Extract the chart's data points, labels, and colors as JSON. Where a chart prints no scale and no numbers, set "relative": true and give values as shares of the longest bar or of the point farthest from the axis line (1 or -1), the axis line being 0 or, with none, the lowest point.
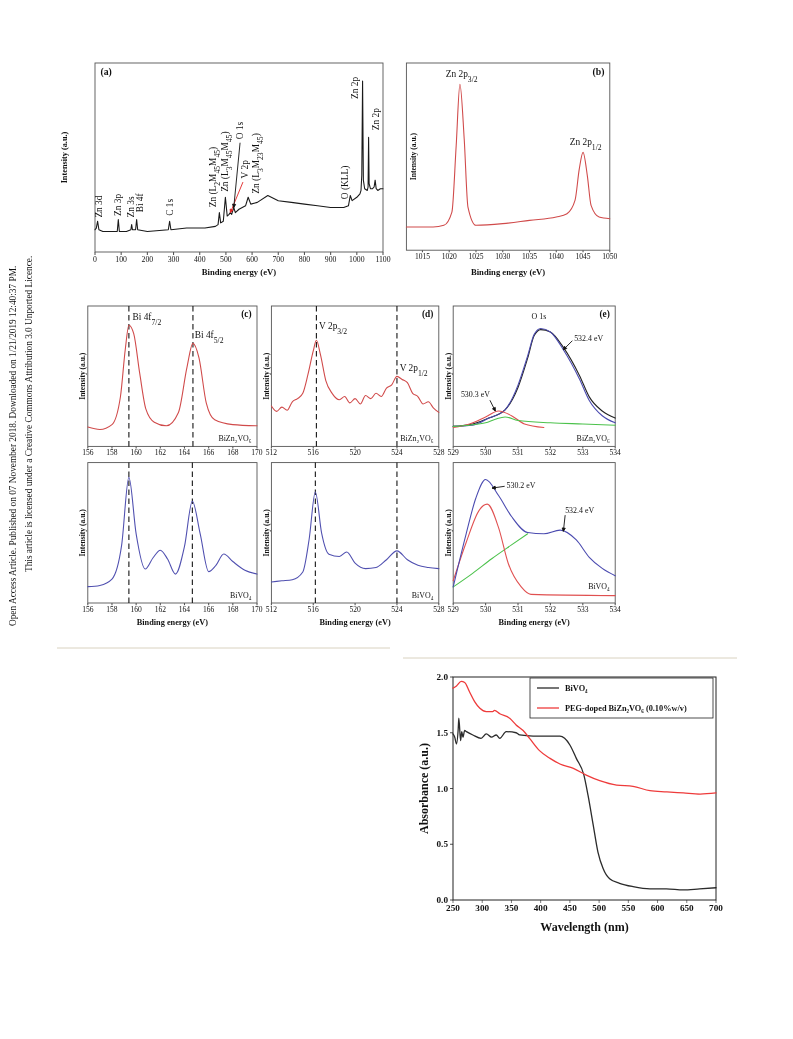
{
  "chart_data": [
    {
      "type": "line",
      "title": "(a)",
      "xlabel": "Binding energy (eV)",
      "ylabel": "Intensity (a.u.)",
      "relative": true,
      "xlim": [
        0,
        1100
      ],
      "xticks": [
        0,
        100,
        200,
        300,
        400,
        500,
        600,
        700,
        800,
        900,
        1000,
        1100
      ],
      "series": [
        {
          "color": "#1a1a1a",
          "x": [
            0,
            5,
            10,
            15,
            30,
            60,
            85,
            89,
            93,
            120,
            137,
            140,
            143,
            155,
            159,
            163,
            200,
            280,
            285,
            290,
            350,
            420,
            460,
            470,
            475,
            480,
            490,
            498,
            505,
            512,
            517,
            522,
            530,
            536,
            550,
            575,
            585,
            595,
            620,
            660,
            700,
            750,
            800,
            850,
            900,
            950,
            968,
            975,
            982,
            1000,
            1012,
            1016,
            1019,
            1022,
            1025,
            1030,
            1040,
            1043,
            1045,
            1047,
            1052,
            1060,
            1066,
            1070,
            1074,
            1080,
            1090,
            1100
          ],
          "values": [
            0.13,
            0.14,
            0.18,
            0.13,
            0.12,
            0.12,
            0.12,
            0.19,
            0.12,
            0.12,
            0.13,
            0.16,
            0.13,
            0.13,
            0.19,
            0.13,
            0.12,
            0.13,
            0.18,
            0.13,
            0.14,
            0.14,
            0.15,
            0.16,
            0.23,
            0.17,
            0.18,
            0.32,
            0.21,
            0.22,
            0.23,
            0.22,
            0.26,
            0.23,
            0.25,
            0.27,
            0.32,
            0.28,
            0.29,
            0.33,
            0.3,
            0.29,
            0.28,
            0.27,
            0.26,
            0.26,
            0.27,
            0.33,
            0.3,
            0.32,
            0.34,
            0.36,
            0.45,
            1.0,
            0.42,
            0.37,
            0.36,
            0.38,
            0.67,
            0.4,
            0.37,
            0.37,
            0.38,
            0.42,
            0.37,
            0.36,
            0.37,
            0.37
          ]
        }
      ],
      "annotations": [
        {
          "text": "Zn 3d",
          "x": 10,
          "y": 0.18
        },
        {
          "text": "Zn 3p",
          "x": 89,
          "y": 0.19
        },
        {
          "text": "Zn 3s",
          "x": 140,
          "y": 0.16
        },
        {
          "text": "Bi 4f",
          "x": 159,
          "y": 0.19
        },
        {
          "text": "C 1s",
          "x": 285,
          "y": 0.18
        },
        {
          "text": "Zn (L$_{2}$M$_{45}$M$_{45}$)",
          "x": 475,
          "y": 0.23
        },
        {
          "text": "Zn (L$_{3}$M$_{45}$M$_{45}$)",
          "x": 498,
          "y": 0.32
        },
        {
          "text": "V 2p",
          "x": 517,
          "y": 0.23
        },
        {
          "text": "O 1s",
          "x": 530,
          "y": 0.26
        },
        {
          "text": "Zn (L$_{3}$M$_{23}$M$_{45}$)",
          "x": 585,
          "y": 0.32
        },
        {
          "text": "O (KLL)",
          "x": 975,
          "y": 0.33
        },
        {
          "text": "Zn 2p",
          "x": 1022,
          "y": 1.0
        },
        {
          "text": "Zn 2p",
          "x": 1045,
          "y": 0.67
        },
        "Open Access Article. Published on 07 November 2018. Downloaded on 1/21/2019 12:40:37 PM.",
        "This article is licensed under a Creative Commons Attribution 3.0 Unported Licence."
      ]
    },
    {
      "type": "line",
      "title": "(b)",
      "xlabel": "Binding energy (eV)",
      "ylabel": "Intensity (a.u.)",
      "relative": true,
      "xlim": [
        1012,
        1050
      ],
      "xticks": [
        1015,
        1020,
        1025,
        1030,
        1035,
        1040,
        1045,
        1050
      ],
      "series": [
        {
          "color": "#d04a4a",
          "x": [
            1012,
            1015,
            1017,
            1019,
            1020.5,
            1021.3,
            1022,
            1022.8,
            1023.5,
            1025,
            1030,
            1035,
            1040,
            1042,
            1043.5,
            1044.3,
            1045,
            1045.8,
            1046.5,
            1048,
            1050
          ],
          "values": [
            0.14,
            0.14,
            0.14,
            0.15,
            0.23,
            0.63,
            1.0,
            0.67,
            0.26,
            0.15,
            0.16,
            0.18,
            0.2,
            0.22,
            0.3,
            0.49,
            0.59,
            0.45,
            0.27,
            0.2,
            0.19
          ]
        }
      ],
      "annotations": [
        {
          "text": "Zn 2p$_{3/2}$",
          "x": 1022,
          "y": 1.0
        },
        {
          "text": "Zn 2p$_{1/2}$",
          "x": 1045,
          "y": 0.59
        }
      ]
    },
    {
      "type": "line",
      "title": "(c)",
      "ylabel": "Intensity (a.u.)",
      "relative": true,
      "xlim": [
        156,
        170
      ],
      "xticks": [
        156,
        158,
        160,
        162,
        164,
        166,
        168,
        170
      ],
      "series": [
        {
          "color": "#d04a4a",
          "x": [
            156,
            157,
            158,
            158.7,
            159.1,
            159.4,
            159.8,
            160.3,
            160.8,
            161.5,
            162.5,
            163.5,
            164.2,
            164.7,
            165.2,
            165.8,
            166.5,
            168,
            170
          ],
          "values": [
            0.16,
            0.14,
            0.18,
            0.41,
            0.8,
            1.0,
            0.93,
            0.6,
            0.31,
            0.2,
            0.17,
            0.28,
            0.65,
            0.85,
            0.73,
            0.36,
            0.22,
            0.18,
            0.17
          ]
        }
      ],
      "ref_lines": [
        {
          "axis": "x",
          "value": 159.4,
          "color": "#111111",
          "line_style": "dashed"
        },
        {
          "axis": "x",
          "value": 164.7,
          "color": "#111111",
          "line_style": "dashed"
        }
      ],
      "annotations": [
        {
          "text": "Bi 4f$_{7/2}$",
          "x": 159.4,
          "y": 1.0
        },
        {
          "text": "Bi 4f$_{5/2}$",
          "x": 164.7,
          "y": 0.85
        },
        "BiZn₂VO₆"
      ]
    },
    {
      "type": "line",
      "title": "(d)",
      "ylabel": "Intensity (a.u.)",
      "relative": true,
      "xlim": [
        512,
        528
      ],
      "xticks": [
        512,
        516,
        520,
        524,
        528
      ],
      "series": [
        {
          "color": "#d04a4a",
          "x": [
            512,
            512.5,
            513,
            513.5,
            514,
            514.5,
            515,
            515.5,
            516,
            516.3,
            516.7,
            517.2,
            517.8,
            518.5,
            519,
            519.5,
            520,
            520.5,
            521,
            521.5,
            522,
            522.5,
            523,
            523.5,
            524,
            524.5,
            525,
            525.5,
            526,
            526.5,
            527,
            527.5,
            528
          ],
          "values": [
            0.38,
            0.33,
            0.37,
            0.34,
            0.42,
            0.45,
            0.5,
            0.68,
            0.9,
            1.0,
            0.86,
            0.62,
            0.5,
            0.44,
            0.47,
            0.41,
            0.45,
            0.4,
            0.48,
            0.45,
            0.5,
            0.47,
            0.55,
            0.58,
            0.66,
            0.63,
            0.6,
            0.5,
            0.47,
            0.4,
            0.42,
            0.36,
            0.32
          ]
        }
      ],
      "ref_lines": [
        {
          "axis": "x",
          "value": 516.3,
          "color": "#111111",
          "line_style": "dashed"
        },
        {
          "axis": "x",
          "value": 524,
          "color": "#111111",
          "line_style": "dashed"
        }
      ],
      "annotations": [
        {
          "text": "V 2p$_{3/2}$",
          "x": 516.3,
          "y": 1.0
        },
        {
          "text": "V 2p$_{1/2}$",
          "x": 524,
          "y": 0.66
        },
        "BiZn₂VO₆"
      ]
    },
    {
      "type": "line",
      "title": "(e)",
      "ylabel": "Intensity (a.u.)",
      "relative": true,
      "xlim": [
        529,
        534
      ],
      "xticks": [
        529,
        530,
        531,
        532,
        533,
        534
      ],
      "series": [
        {
          "color": "#222222",
          "x": [
            529,
            529.6,
            530.1,
            530.6,
            531,
            531.3,
            531.5,
            531.7,
            532,
            532.4,
            532.9,
            533.2,
            533.6,
            534
          ],
          "values": [
            0.17,
            0.19,
            0.24,
            0.31,
            0.5,
            0.75,
            0.94,
            0.99,
            0.97,
            0.84,
            0.6,
            0.42,
            0.3,
            0.24
          ]
        },
        {
          "color": "#4b4bb0",
          "x": [
            529,
            529.6,
            530.1,
            530.6,
            531,
            531.3,
            531.5,
            531.7,
            532,
            532.4,
            532.9,
            533.2,
            533.6,
            534
          ],
          "values": [
            0.17,
            0.18,
            0.24,
            0.31,
            0.52,
            0.77,
            0.95,
            1.0,
            0.97,
            0.82,
            0.57,
            0.39,
            0.26,
            0.2
          ]
        },
        {
          "color": "#e05050",
          "x": [
            529,
            529.5,
            530,
            530.4,
            530.8,
            531.2,
            531.8
          ],
          "values": [
            0.16,
            0.19,
            0.25,
            0.3,
            0.26,
            0.19,
            0.16
          ]
        },
        {
          "color": "#4cc24c",
          "x": [
            529,
            529.5,
            530,
            530.3,
            530.6,
            531,
            532,
            533,
            534
          ],
          "values": [
            0.17,
            0.18,
            0.2,
            0.23,
            0.25,
            0.22,
            0.2,
            0.19,
            0.18
          ]
        }
      ],
      "annotations": [
        {
          "text": "O 1s",
          "x": 531.7,
          "y": 1.0
        },
        {
          "text": "532.4 eV",
          "x": 532.4,
          "y": 0.82
        },
        {
          "text": "530.3 eV",
          "x": 530.3,
          "y": 0.3
        },
        "BiZn₂VO₆"
      ]
    },
    {
      "type": "line",
      "xlabel": "Binding energy (eV)",
      "ylabel": "Intensity (a.u.)",
      "relative": true,
      "xlim": [
        156,
        170
      ],
      "xticks": [
        156,
        158,
        160,
        162,
        164,
        166,
        168,
        170
      ],
      "series": [
        {
          "color": "#5050b0",
          "x": [
            156,
            157,
            158,
            158.8,
            159.4,
            160,
            160.75,
            161.4,
            162,
            162.6,
            163.25,
            164,
            164.65,
            165.3,
            166,
            166.6,
            167.25,
            168,
            169,
            170
          ],
          "values": [
            0.13,
            0.14,
            0.19,
            0.46,
            1.0,
            0.55,
            0.27,
            0.36,
            0.42,
            0.35,
            0.23,
            0.45,
            0.81,
            0.55,
            0.25,
            0.3,
            0.39,
            0.33,
            0.26,
            0.23
          ]
        }
      ],
      "ref_lines": [
        {
          "axis": "x",
          "value": 159.4,
          "color": "#111111",
          "line_style": "dashed"
        },
        {
          "axis": "x",
          "value": 164.65,
          "color": "#111111",
          "line_style": "dashed"
        }
      ],
      "annotations": [
        "BiVO₄"
      ]
    },
    {
      "type": "line",
      "xlabel": "Binding energy (eV)",
      "ylabel": "Intensity (a.u.)",
      "relative": true,
      "xlim": [
        512,
        528
      ],
      "xticks": [
        512,
        516,
        520,
        524,
        528
      ],
      "series": [
        {
          "color": "#5050b0",
          "x": [
            512,
            513,
            514,
            515,
            515.6,
            516.2,
            516.8,
            517.5,
            518.5,
            519.2,
            520,
            521,
            522,
            523,
            524,
            525,
            526,
            527,
            528
          ],
          "values": [
            0.19,
            0.2,
            0.21,
            0.28,
            0.57,
            1.0,
            0.63,
            0.44,
            0.42,
            0.46,
            0.36,
            0.31,
            0.32,
            0.39,
            0.47,
            0.39,
            0.34,
            0.32,
            0.31
          ]
        }
      ],
      "ref_lines": [
        {
          "axis": "x",
          "value": 516.2,
          "color": "#111111",
          "line_style": "dashed"
        },
        {
          "axis": "x",
          "value": 524,
          "color": "#111111",
          "line_style": "dashed"
        }
      ],
      "annotations": [
        "BiVO₄"
      ]
    },
    {
      "type": "line",
      "xlabel": "Binding energy (eV)",
      "ylabel": "Intensity (a.u.)",
      "relative": true,
      "xlim": [
        529,
        534
      ],
      "xticks": [
        529,
        530,
        531,
        532,
        533,
        534
      ],
      "series": [
        {
          "color": "#4cc24c",
          "x": [
            529,
            529.6,
            530.2,
            530.8,
            531.3
          ],
          "values": [
            0.13,
            0.24,
            0.36,
            0.47,
            0.56
          ]
        },
        {
          "color": "#e05050",
          "x": [
            529,
            529.4,
            529.8,
            530.05,
            530.4,
            530.7,
            531.1,
            531.4,
            534
          ],
          "values": [
            0.18,
            0.49,
            0.75,
            0.8,
            0.61,
            0.32,
            0.13,
            0.07,
            0.06
          ]
        },
        {
          "color": "#4b4bb0",
          "x": [
            529,
            529.4,
            529.7,
            530,
            530.4,
            530.8,
            531.3,
            531.8,
            532.3,
            532.8,
            533.2,
            533.6,
            534
          ],
          "values": [
            0.13,
            0.56,
            0.85,
            1.0,
            0.87,
            0.7,
            0.57,
            0.56,
            0.59,
            0.51,
            0.37,
            0.28,
            0.22
          ]
        }
      ],
      "annotations": [
        {
          "text": "530.2 eV",
          "x": 530.2,
          "y": 0.93
        },
        {
          "text": "532.4 eV",
          "x": 532.4,
          "y": 0.58
        },
        "BiVO₄"
      ]
    },
    {
      "type": "line",
      "xlabel": "Wavelength (nm)",
      "ylabel": "Absorbance (a.u.)",
      "xlim": [
        250,
        700
      ],
      "ylim": [
        0,
        2
      ],
      "xticks": [
        250,
        300,
        350,
        400,
        450,
        500,
        550,
        600,
        650,
        700
      ],
      "yticks": [
        {
          "value": 0,
          "label": "0.0"
        },
        {
          "value": 0.5,
          "label": "0.5"
        },
        {
          "value": 1,
          "label": "1.0"
        },
        {
          "value": 1.5,
          "label": "1.5"
        },
        {
          "value": 2,
          "label": "2.0"
        }
      ],
      "legend": "top right",
      "series": [
        {
          "name": "BiVO₄",
          "color": "#2b2b2b",
          "x": [
            250,
            253,
            256,
            259,
            260,
            263,
            265,
            267,
            270,
            273,
            284,
            298,
            307,
            316,
            324,
            330,
            341,
            358,
            364,
            387,
            410,
            433,
            441,
            450,
            461,
            474,
            481,
            490,
            498,
            507,
            518,
            535,
            558,
            587,
            615,
            644,
            672,
            700
          ],
          "values": [
            1.49,
            1.46,
            1.4,
            1.54,
            1.63,
            1.43,
            1.51,
            1.46,
            1.52,
            1.51,
            1.48,
            1.45,
            1.49,
            1.46,
            1.48,
            1.45,
            1.51,
            1.5,
            1.48,
            1.47,
            1.47,
            1.47,
            1.45,
            1.39,
            1.27,
            1.12,
            0.94,
            0.67,
            0.43,
            0.28,
            0.19,
            0.15,
            0.12,
            0.1,
            0.1,
            0.09,
            0.1,
            0.11
          ]
        },
        {
          "name": "PEG-doped BiZn₂VO₆ (0.10%w/v)",
          "color": "#ee3b3b",
          "x": [
            250,
            256,
            264,
            270,
            278,
            287,
            296,
            307,
            318,
            321,
            330,
            347,
            358,
            370,
            381,
            398,
            416,
            433,
            456,
            478,
            501,
            530,
            558,
            587,
            616,
            644,
            673,
            700
          ],
          "values": [
            1.9,
            1.92,
            1.96,
            1.95,
            1.87,
            1.78,
            1.72,
            1.69,
            1.69,
            1.7,
            1.67,
            1.63,
            1.57,
            1.52,
            1.45,
            1.34,
            1.27,
            1.22,
            1.18,
            1.12,
            1.07,
            1.03,
            1.02,
            0.98,
            0.97,
            0.96,
            0.95,
            0.96
          ]
        }
      ]
    }
  ]
}
